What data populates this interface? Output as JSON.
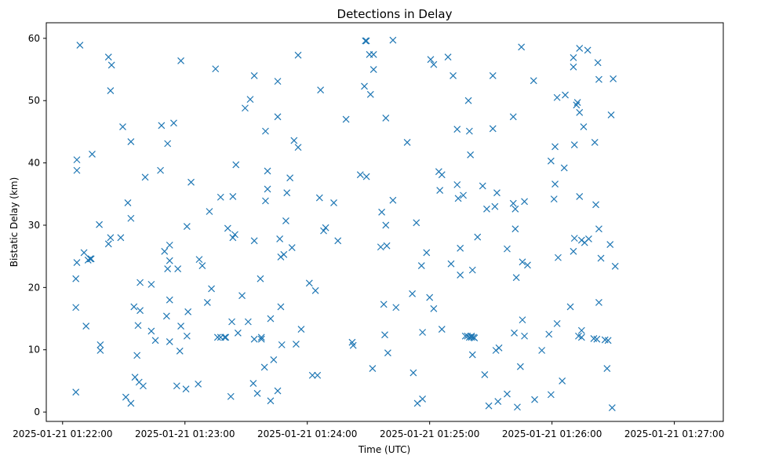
{
  "chart_data": {
    "type": "scatter",
    "title": "Detections in Delay",
    "xlabel": "Time (UTC)",
    "ylabel": "Bistatic Delay (km)",
    "marker": "x",
    "color": "#1f77b4",
    "x_unit": "seconds after 2025-01-21 01:22:00 UTC",
    "xlim": [
      -8,
      324
    ],
    "ylim": [
      -1.5,
      62.5
    ],
    "x_ticks": [
      {
        "value": 0,
        "label": "2025-01-21 01:22:00"
      },
      {
        "value": 60,
        "label": "2025-01-21 01:23:00"
      },
      {
        "value": 120,
        "label": "2025-01-21 01:24:00"
      },
      {
        "value": 180,
        "label": "2025-01-21 01:25:00"
      },
      {
        "value": 240,
        "label": "2025-01-21 01:26:00"
      },
      {
        "value": 300,
        "label": "2025-01-21 01:27:00"
      }
    ],
    "y_ticks": [
      {
        "value": 0,
        "label": "0"
      },
      {
        "value": 10,
        "label": "10"
      },
      {
        "value": 20,
        "label": "20"
      },
      {
        "value": 30,
        "label": "30"
      },
      {
        "value": 40,
        "label": "40"
      },
      {
        "value": 50,
        "label": "50"
      },
      {
        "value": 60,
        "label": "60"
      }
    ],
    "points": [
      [
        6.5,
        3.2
      ],
      [
        6.5,
        16.8
      ],
      [
        6.5,
        21.4
      ],
      [
        7,
        40.5
      ],
      [
        7,
        38.8
      ],
      [
        7,
        24.0
      ],
      [
        8.5,
        58.9
      ],
      [
        10.5,
        25.6
      ],
      [
        11.5,
        13.8
      ],
      [
        12.5,
        24.4
      ],
      [
        13.5,
        24.6
      ],
      [
        14,
        24.6
      ],
      [
        14.5,
        41.4
      ],
      [
        18,
        30.1
      ],
      [
        18.5,
        10.8
      ],
      [
        18.5,
        9.9
      ],
      [
        22.5,
        57.0
      ],
      [
        22.5,
        27.0
      ],
      [
        23.5,
        51.6
      ],
      [
        23.5,
        28.0
      ],
      [
        24,
        55.7
      ],
      [
        28.5,
        28.0
      ],
      [
        29.5,
        45.8
      ],
      [
        31,
        2.4
      ],
      [
        32,
        33.6
      ],
      [
        33.5,
        1.4
      ],
      [
        33.5,
        43.4
      ],
      [
        33.5,
        31.1
      ],
      [
        35,
        16.9
      ],
      [
        35.5,
        5.6
      ],
      [
        36.5,
        9.1
      ],
      [
        37,
        13.9
      ],
      [
        37.5,
        4.8
      ],
      [
        38,
        20.8
      ],
      [
        38,
        16.3
      ],
      [
        39.5,
        4.2
      ],
      [
        40.5,
        37.7
      ],
      [
        43.5,
        13.0
      ],
      [
        43.5,
        20.5
      ],
      [
        45.5,
        11.5
      ],
      [
        48,
        38.8
      ],
      [
        48.5,
        46.0
      ],
      [
        50,
        25.8
      ],
      [
        51,
        15.4
      ],
      [
        51.5,
        43.1
      ],
      [
        51.5,
        23.0
      ],
      [
        52.5,
        26.8
      ],
      [
        52.5,
        24.3
      ],
      [
        52.5,
        18.0
      ],
      [
        52.5,
        11.3
      ],
      [
        54.5,
        46.4
      ],
      [
        56,
        4.2
      ],
      [
        56.5,
        23.0
      ],
      [
        57.5,
        9.8
      ],
      [
        58,
        13.8
      ],
      [
        58,
        56.4
      ],
      [
        60.5,
        3.7
      ],
      [
        61,
        29.8
      ],
      [
        61,
        12.2
      ],
      [
        61.5,
        16.1
      ],
      [
        63,
        36.9
      ],
      [
        66.5,
        4.5
      ],
      [
        67,
        24.5
      ],
      [
        68.5,
        23.5
      ],
      [
        71,
        17.6
      ],
      [
        72,
        32.2
      ],
      [
        73,
        19.8
      ],
      [
        75,
        55.1
      ],
      [
        76,
        12.0
      ],
      [
        77.5,
        12.0
      ],
      [
        77.5,
        34.5
      ],
      [
        79.5,
        12.0
      ],
      [
        80,
        12.0
      ],
      [
        81,
        29.5
      ],
      [
        82.5,
        2.5
      ],
      [
        83,
        14.5
      ],
      [
        83.5,
        34.6
      ],
      [
        83.5,
        28.0
      ],
      [
        84.5,
        28.5
      ],
      [
        85,
        39.7
      ],
      [
        86,
        12.7
      ],
      [
        88,
        18.7
      ],
      [
        89.5,
        48.8
      ],
      [
        91,
        14.5
      ],
      [
        92,
        50.2
      ],
      [
        93.5,
        4.6
      ],
      [
        94,
        27.5
      ],
      [
        94,
        54.0
      ],
      [
        94,
        11.7
      ],
      [
        95.5,
        3.0
      ],
      [
        97,
        21.4
      ],
      [
        97.5,
        12.0
      ],
      [
        97.5,
        11.7
      ],
      [
        99,
        7.2
      ],
      [
        99.5,
        45.1
      ],
      [
        99.5,
        33.9
      ],
      [
        100.5,
        38.7
      ],
      [
        100.5,
        35.8
      ],
      [
        102,
        1.8
      ],
      [
        102,
        15.0
      ],
      [
        103.5,
        8.4
      ],
      [
        105.5,
        3.4
      ],
      [
        105.5,
        53.1
      ],
      [
        105.5,
        47.4
      ],
      [
        106.5,
        27.8
      ],
      [
        107,
        24.9
      ],
      [
        107,
        16.9
      ],
      [
        107.5,
        10.8
      ],
      [
        108.5,
        25.3
      ],
      [
        109.5,
        30.7
      ],
      [
        110,
        35.2
      ],
      [
        111.5,
        37.6
      ],
      [
        112.5,
        26.4
      ],
      [
        113.5,
        43.6
      ],
      [
        114.5,
        10.9
      ],
      [
        115.5,
        42.5
      ],
      [
        115.5,
        57.3
      ],
      [
        117,
        13.3
      ],
      [
        121,
        20.7
      ],
      [
        122.5,
        5.9
      ],
      [
        124,
        19.5
      ],
      [
        125,
        5.9
      ],
      [
        126,
        34.4
      ],
      [
        126.5,
        51.7
      ],
      [
        128,
        29.1
      ],
      [
        129,
        29.6
      ],
      [
        133,
        33.6
      ],
      [
        135,
        27.5
      ],
      [
        139,
        47.0
      ],
      [
        142,
        11.2
      ],
      [
        142.5,
        10.7
      ],
      [
        146,
        38.1
      ],
      [
        148,
        52.3
      ],
      [
        148.5,
        59.6
      ],
      [
        149,
        59.6
      ],
      [
        149,
        37.8
      ],
      [
        150.5,
        57.4
      ],
      [
        151,
        51.0
      ],
      [
        152,
        7.0
      ],
      [
        152.5,
        57.4
      ],
      [
        152.5,
        55.0
      ],
      [
        156,
        26.5
      ],
      [
        156.5,
        32.1
      ],
      [
        157.5,
        17.3
      ],
      [
        158,
        12.4
      ],
      [
        158.5,
        47.2
      ],
      [
        158.5,
        30.0
      ],
      [
        159,
        26.7
      ],
      [
        159.5,
        9.5
      ],
      [
        162,
        34.0
      ],
      [
        162,
        59.7
      ],
      [
        163.5,
        16.8
      ],
      [
        169,
        43.3
      ],
      [
        171.5,
        19.0
      ],
      [
        172,
        6.3
      ],
      [
        173.5,
        30.4
      ],
      [
        174,
        1.4
      ],
      [
        176,
        23.5
      ],
      [
        176.5,
        2.1
      ],
      [
        176.5,
        12.8
      ],
      [
        178.5,
        25.6
      ],
      [
        180,
        18.4
      ],
      [
        180.5,
        56.6
      ],
      [
        182,
        16.6
      ],
      [
        182,
        55.8
      ],
      [
        184.5,
        38.6
      ],
      [
        185,
        35.6
      ],
      [
        186,
        38.1
      ],
      [
        186,
        13.3
      ],
      [
        189,
        57.0
      ],
      [
        190.5,
        23.8
      ],
      [
        191.5,
        54.0
      ],
      [
        193.5,
        45.4
      ],
      [
        193.5,
        36.5
      ],
      [
        194,
        34.3
      ],
      [
        195,
        22.0
      ],
      [
        195,
        26.3
      ],
      [
        196.5,
        34.8
      ],
      [
        197.5,
        12.2
      ],
      [
        198.5,
        12.2
      ],
      [
        199,
        50.0
      ],
      [
        199.5,
        45.1
      ],
      [
        199.5,
        12.0
      ],
      [
        200,
        41.3
      ],
      [
        200.5,
        12.2
      ],
      [
        200.5,
        12.0
      ],
      [
        201,
        22.8
      ],
      [
        201,
        9.2
      ],
      [
        201.5,
        12.0
      ],
      [
        202,
        11.9
      ],
      [
        203.5,
        28.1
      ],
      [
        206,
        36.3
      ],
      [
        207,
        6.0
      ],
      [
        208,
        32.6
      ],
      [
        209,
        1.0
      ],
      [
        211,
        54.0
      ],
      [
        211,
        45.5
      ],
      [
        212,
        33.0
      ],
      [
        212.5,
        9.9
      ],
      [
        213,
        35.2
      ],
      [
        213.5,
        1.7
      ],
      [
        214,
        10.3
      ],
      [
        218,
        26.2
      ],
      [
        218,
        2.9
      ],
      [
        221,
        47.4
      ],
      [
        221,
        33.5
      ],
      [
        221.5,
        12.7
      ],
      [
        222,
        32.6
      ],
      [
        222,
        29.4
      ],
      [
        222.5,
        21.6
      ],
      [
        223,
        0.8
      ],
      [
        224.5,
        7.3
      ],
      [
        225,
        58.6
      ],
      [
        225.5,
        14.8
      ],
      [
        225.5,
        24.1
      ],
      [
        226.5,
        33.8
      ],
      [
        226.5,
        12.2
      ],
      [
        228,
        23.6
      ],
      [
        231,
        53.2
      ],
      [
        231.5,
        2.0
      ],
      [
        235,
        9.9
      ],
      [
        238.5,
        12.5
      ],
      [
        239.5,
        2.8
      ],
      [
        239.5,
        40.3
      ],
      [
        241,
        34.2
      ],
      [
        241.5,
        42.6
      ],
      [
        241.5,
        36.6
      ],
      [
        242.5,
        50.5
      ],
      [
        242.5,
        14.2
      ],
      [
        243,
        24.8
      ],
      [
        245,
        5.0
      ],
      [
        246,
        39.2
      ],
      [
        246.5,
        50.9
      ],
      [
        249,
        16.9
      ],
      [
        250.5,
        56.9
      ],
      [
        250.5,
        55.4
      ],
      [
        250.5,
        25.8
      ],
      [
        251,
        42.9
      ],
      [
        251,
        27.9
      ],
      [
        252,
        49.3
      ],
      [
        252.5,
        49.7
      ],
      [
        253,
        12.2
      ],
      [
        253.5,
        58.4
      ],
      [
        253.5,
        48.1
      ],
      [
        253.5,
        34.6
      ],
      [
        254.5,
        12.0
      ],
      [
        254.5,
        13.1
      ],
      [
        254.5,
        27.6
      ],
      [
        255.5,
        45.8
      ],
      [
        256,
        27.2
      ],
      [
        257.5,
        58.1
      ],
      [
        258,
        27.8
      ],
      [
        260.5,
        11.8
      ],
      [
        261,
        43.3
      ],
      [
        261.5,
        33.3
      ],
      [
        262,
        11.7
      ],
      [
        262.5,
        56.1
      ],
      [
        263,
        17.6
      ],
      [
        263,
        29.4
      ],
      [
        263,
        53.4
      ],
      [
        264,
        24.7
      ],
      [
        266,
        11.6
      ],
      [
        267,
        7.0
      ],
      [
        267.5,
        11.5
      ],
      [
        268.5,
        26.9
      ],
      [
        269,
        47.7
      ],
      [
        269.5,
        0.7
      ],
      [
        270,
        53.5
      ],
      [
        271,
        23.4
      ]
    ]
  }
}
